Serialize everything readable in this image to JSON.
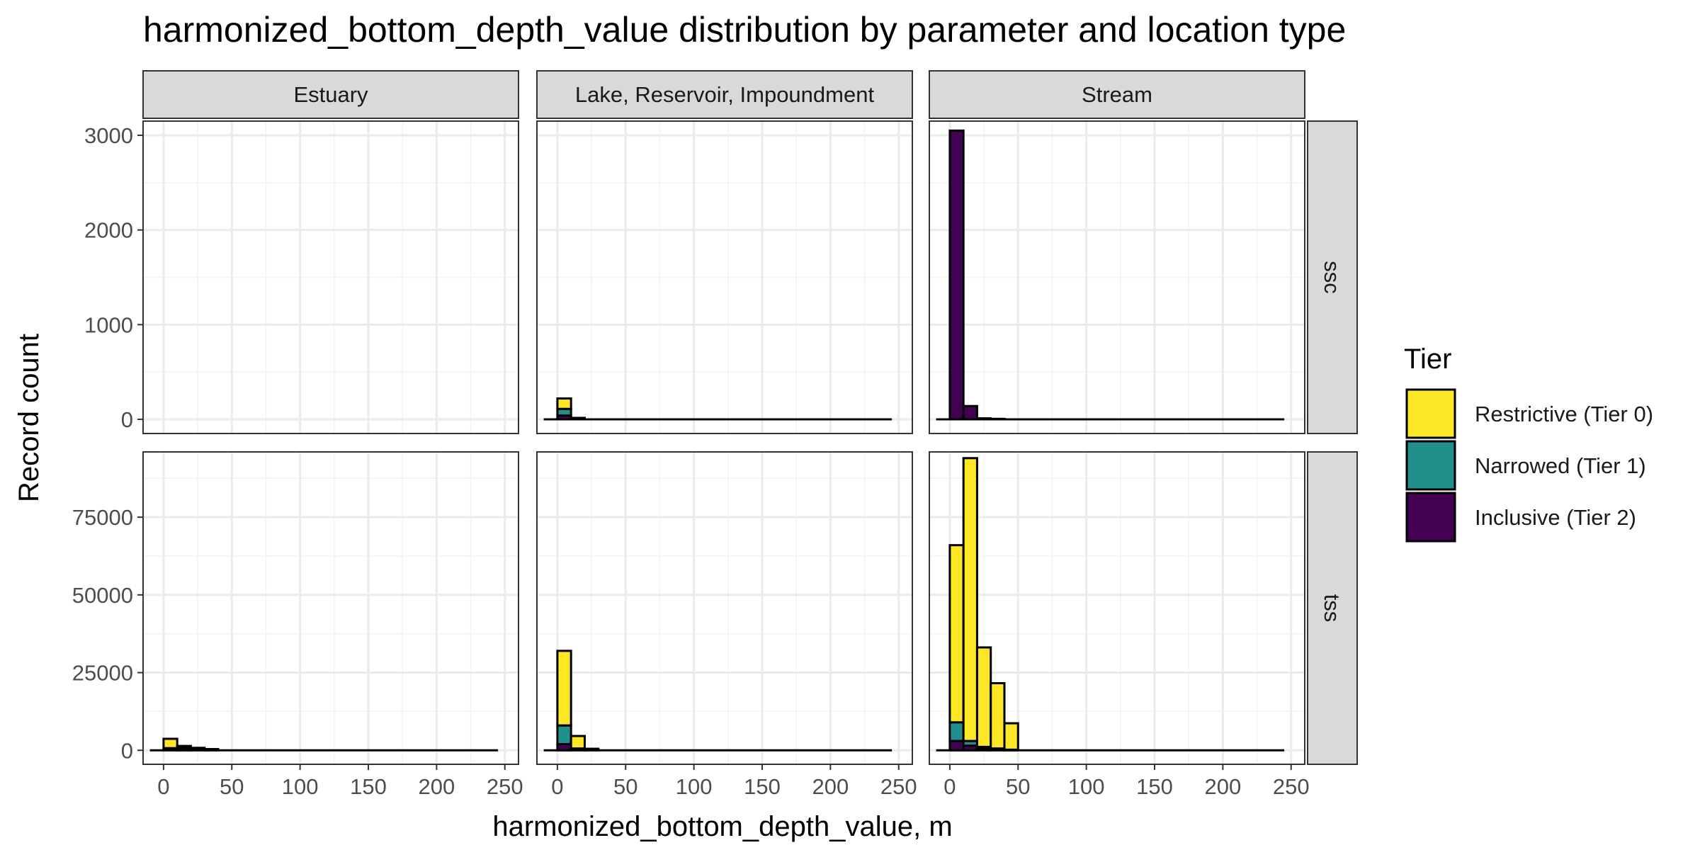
{
  "chart_data": {
    "type": "bar",
    "subtype": "faceted stacked histogram",
    "title": "harmonized_bottom_depth_value distribution by parameter and location type",
    "xlabel": "harmonized_bottom_depth_value, m",
    "ylabel": "Record count",
    "x_ticks": [
      0,
      50,
      100,
      150,
      200,
      250
    ],
    "xlim": [
      -15,
      260
    ],
    "bin_width": 10,
    "bin_starts": [
      -10,
      0,
      10,
      20,
      30,
      40
    ],
    "grid": true,
    "legend": {
      "title": "Tier",
      "placement": "right",
      "entries": [
        {
          "label": "Restrictive (Tier 0)",
          "color": "#FDE725"
        },
        {
          "label": "Narrowed (Tier 1)",
          "color": "#21908C"
        },
        {
          "label": "Inclusive (Tier 2)",
          "color": "#440154"
        }
      ]
    },
    "columns": [
      "Estuary",
      "Lake, Reservoir, Impoundment",
      "Stream"
    ],
    "rows": [
      {
        "name": "ssc",
        "ylim": [
          -150,
          3150
        ],
        "y_ticks": [
          0,
          1000,
          2000,
          3000
        ],
        "y_tick_labels": [
          "0",
          "1000",
          "2000",
          "3000"
        ]
      },
      {
        "name": "tss",
        "ylim": [
          -4500,
          96000
        ],
        "y_ticks": [
          0,
          25000,
          50000,
          75000
        ],
        "y_tick_labels": [
          "0",
          "25000",
          "50000",
          "75000"
        ]
      }
    ],
    "panels": [
      {
        "row": "ssc",
        "column": "Estuary",
        "baseline": null,
        "series": {
          "Restrictive (Tier 0)": [],
          "Narrowed (Tier 1)": [],
          "Inclusive (Tier 2)": []
        }
      },
      {
        "row": "ssc",
        "column": "Lake, Reservoir, Impoundment",
        "baseline": [
          -10,
          245
        ],
        "series": {
          "Restrictive (Tier 0)": [
            0,
            110,
            5,
            0,
            0,
            0
          ],
          "Narrowed (Tier 1)": [
            0,
            70,
            5,
            0,
            0,
            0
          ],
          "Inclusive (Tier 2)": [
            0,
            40,
            5,
            0,
            0,
            0
          ]
        }
      },
      {
        "row": "ssc",
        "column": "Stream",
        "baseline": [
          -10,
          245
        ],
        "series": {
          "Restrictive (Tier 0)": [
            0,
            0,
            0,
            0,
            0,
            0
          ],
          "Narrowed (Tier 1)": [
            0,
            0,
            0,
            0,
            0,
            0
          ],
          "Inclusive (Tier 2)": [
            0,
            3050,
            140,
            10,
            5,
            0
          ]
        }
      },
      {
        "row": "tss",
        "column": "Estuary",
        "baseline": [
          -10,
          245
        ],
        "series": {
          "Restrictive (Tier 0)": [
            0,
            3000,
            300,
            200,
            100,
            0
          ],
          "Narrowed (Tier 1)": [
            0,
            300,
            300,
            200,
            100,
            0
          ],
          "Inclusive (Tier 2)": [
            0,
            400,
            800,
            400,
            200,
            0
          ]
        }
      },
      {
        "row": "tss",
        "column": "Lake, Reservoir, Impoundment",
        "baseline": [
          -10,
          245
        ],
        "series": {
          "Restrictive (Tier 0)": [
            0,
            24000,
            4000,
            300,
            0,
            0
          ],
          "Narrowed (Tier 1)": [
            0,
            6000,
            300,
            200,
            0,
            0
          ],
          "Inclusive (Tier 2)": [
            0,
            2000,
            300,
            0,
            0,
            0
          ]
        }
      },
      {
        "row": "tss",
        "column": "Stream",
        "baseline": [
          -10,
          245
        ],
        "series": {
          "Restrictive (Tier 0)": [
            0,
            57000,
            91000,
            32000,
            21000,
            8500
          ],
          "Narrowed (Tier 1)": [
            0,
            6000,
            1500,
            500,
            300,
            100
          ],
          "Inclusive (Tier 2)": [
            0,
            3000,
            1500,
            600,
            300,
            100
          ]
        }
      }
    ]
  }
}
